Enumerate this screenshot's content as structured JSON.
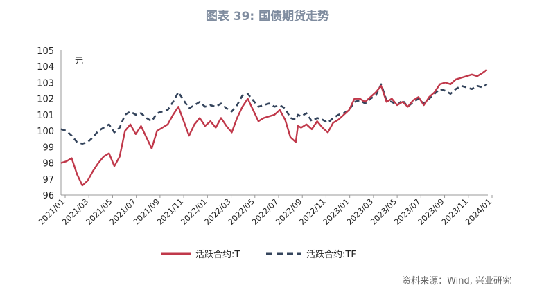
{
  "title": "图表 39: 国债期货走势",
  "source": "资料来源：Wind, 兴业研究",
  "colors": {
    "T": "#c0384a",
    "TF": "#34445c",
    "axis": "#999999"
  },
  "chart_data": {
    "type": "line",
    "title": "图表 39: 国债期货走势",
    "ylabel": "元",
    "ylim": [
      96,
      105
    ],
    "yticks": [
      96,
      97,
      98,
      99,
      100,
      101,
      102,
      103,
      104,
      105
    ],
    "xlim": [
      0,
      40
    ],
    "categories": [
      "2021/01",
      "2021/03",
      "2021/05",
      "2021/07",
      "2021/09",
      "2021/11",
      "2022/01",
      "2022/03",
      "2022/05",
      "2022/07",
      "2022/09",
      "2022/11",
      "2023/01",
      "2023/03",
      "2023/05",
      "2023/07",
      "2023/09",
      "2023/11",
      "2024/01"
    ],
    "legend_position": "bottom",
    "series": [
      {
        "name": "活跃合约:T",
        "style": "solid",
        "x": [
          0,
          0.5,
          1,
          1.5,
          2,
          2.5,
          3,
          3.5,
          4,
          4.5,
          5,
          5.5,
          6,
          6.5,
          7,
          7.5,
          8,
          8.5,
          9,
          9.5,
          10,
          10.5,
          11,
          11.5,
          12,
          12.5,
          13,
          13.5,
          14,
          14.5,
          15,
          15.5,
          16,
          16.5,
          17,
          17.5,
          18,
          18.5,
          19,
          19.5,
          20,
          20.5,
          21,
          21.5,
          22,
          22.2,
          22.5,
          23,
          23.5,
          24,
          24.5,
          25,
          25.5,
          26,
          26.5,
          27,
          27.5,
          28,
          28.5,
          29,
          29.5,
          30,
          30.5,
          31,
          31.5,
          32,
          32.5,
          33,
          33.5,
          34,
          34.5,
          35,
          35.5,
          36,
          36.5,
          37,
          37.5,
          38,
          38.5,
          39,
          39.5,
          39.9
        ],
        "values": [
          98.0,
          98.1,
          98.3,
          97.3,
          96.6,
          96.9,
          97.5,
          98.0,
          98.4,
          98.6,
          97.8,
          98.4,
          100.0,
          100.4,
          99.8,
          100.3,
          99.6,
          98.9,
          100.0,
          100.2,
          100.4,
          101.0,
          101.5,
          100.6,
          99.7,
          100.4,
          100.8,
          100.3,
          100.6,
          100.2,
          100.8,
          100.3,
          99.9,
          100.8,
          101.5,
          102.0,
          101.3,
          100.6,
          100.8,
          100.9,
          101.0,
          101.3,
          100.7,
          99.6,
          99.3,
          100.3,
          100.2,
          100.4,
          100.1,
          100.6,
          100.2,
          99.9,
          100.5,
          100.7,
          101.0,
          101.3,
          102.0,
          102.0,
          101.8,
          102.1,
          102.4,
          102.8,
          101.8,
          102.0,
          101.6,
          101.8,
          101.5,
          101.9,
          102.1,
          101.6,
          102.1,
          102.4,
          102.9,
          103.0,
          102.9,
          103.2,
          103.3,
          103.4,
          103.5,
          103.4,
          103.6,
          103.8
        ]
      },
      {
        "name": "活跃合约:TF",
        "style": "dashed",
        "x": [
          0,
          0.5,
          1,
          1.5,
          2,
          2.5,
          3,
          3.5,
          4,
          4.5,
          5,
          5.5,
          6,
          6.5,
          7,
          7.5,
          8,
          8.5,
          9,
          9.5,
          10,
          10.5,
          11,
          11.5,
          12,
          12.5,
          13,
          13.5,
          14,
          14.5,
          15,
          15.5,
          16,
          16.5,
          17,
          17.5,
          18,
          18.5,
          19,
          19.5,
          20,
          20.5,
          21,
          21.5,
          22,
          22.2,
          22.5,
          23,
          23.5,
          24,
          24.5,
          25,
          25.5,
          26,
          26.5,
          27,
          27.5,
          28,
          28.5,
          29,
          29.5,
          30,
          30.5,
          31,
          31.5,
          32,
          32.5,
          33,
          33.5,
          34,
          34.5,
          35,
          35.5,
          36,
          36.5,
          37,
          37.5,
          38,
          38.5,
          39,
          39.5,
          39.9
        ],
        "values": [
          100.1,
          100.0,
          99.7,
          99.3,
          99.2,
          99.3,
          99.6,
          100.0,
          100.2,
          100.4,
          99.9,
          100.2,
          101.0,
          101.2,
          101.0,
          101.1,
          100.8,
          100.6,
          101.1,
          101.2,
          101.3,
          101.8,
          102.4,
          101.9,
          101.4,
          101.6,
          101.8,
          101.5,
          101.6,
          101.5,
          101.7,
          101.4,
          101.2,
          101.6,
          102.2,
          102.3,
          101.9,
          101.5,
          101.6,
          101.7,
          101.5,
          101.6,
          101.4,
          100.8,
          100.7,
          101.0,
          100.9,
          101.1,
          100.6,
          100.8,
          100.7,
          100.5,
          100.8,
          101.0,
          101.1,
          101.3,
          101.8,
          101.9,
          101.7,
          102.0,
          102.2,
          102.9,
          101.9,
          101.8,
          101.6,
          101.9,
          101.5,
          101.8,
          102.0,
          101.7,
          102.0,
          102.3,
          102.6,
          102.5,
          102.3,
          102.6,
          102.8,
          102.7,
          102.6,
          102.8,
          102.7,
          102.9
        ]
      }
    ]
  }
}
